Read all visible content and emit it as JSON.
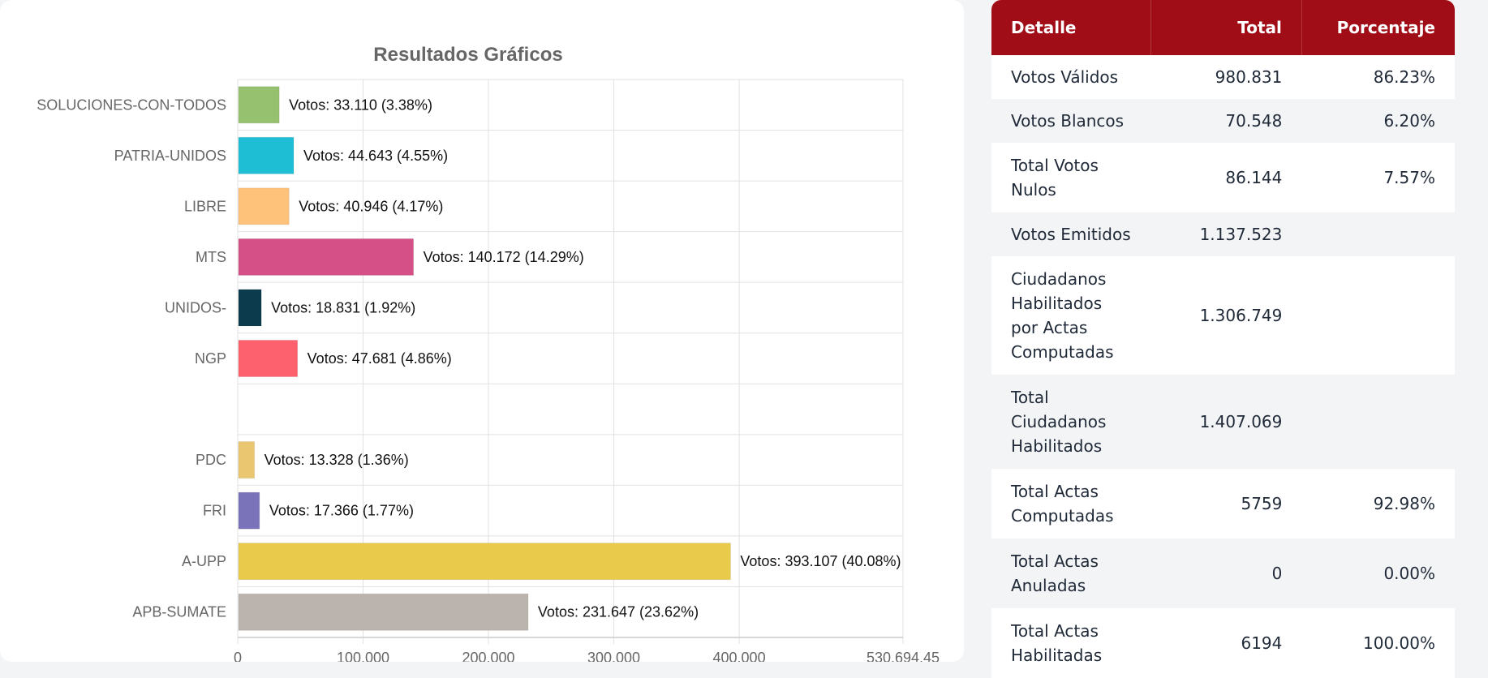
{
  "chart_data": {
    "type": "bar",
    "orientation": "horizontal",
    "title": "Resultados Gráficos",
    "categories": [
      "SOLUCIONES-CON-TODOS",
      "PATRIA-UNIDOS",
      "LIBRE",
      "MTS",
      "UNIDOS-",
      "NGP",
      "",
      "PDC",
      "FRI",
      "A-UPP",
      "APB-SUMATE"
    ],
    "values": [
      33110,
      44643,
      40946,
      140172,
      18831,
      47681,
      null,
      13328,
      17366,
      393107,
      231647
    ],
    "data_labels": [
      "Votos: 33.110 (3.38%)",
      "Votos: 44.643 (4.55%)",
      "Votos: 40.946 (4.17%)",
      "Votos: 140.172 (14.29%)",
      "Votos: 18.831 (1.92%)",
      "Votos: 47.681 (4.86%)",
      "",
      "Votos: 13.328 (1.36%)",
      "Votos: 17.366 (1.77%)",
      "Votos: 393.107 (40.08%)",
      "Votos: 231.647 (23.62%)"
    ],
    "colors": [
      "#96c16f",
      "#1ebfd4",
      "#fec27a",
      "#d55087",
      "#0b3b4d",
      "#fd616e",
      "#ffffff",
      "#e9c66f",
      "#7b73b9",
      "#eaca4a",
      "#bbb3ae"
    ],
    "xlim": [
      0,
      530694.45
    ],
    "x_ticks": [
      0,
      100000,
      200000,
      300000,
      400000,
      530694.45
    ],
    "x_tick_labels": [
      "0",
      "100.000",
      "200.000",
      "300.000",
      "400.000",
      "530.694,45"
    ],
    "grid": true,
    "xlabel": "",
    "ylabel": ""
  },
  "table": {
    "headers": [
      "Detalle",
      "Total",
      "Porcentaje"
    ],
    "rows": [
      {
        "detalle": "Votos Válidos",
        "total": "980.831",
        "porcentaje": "86.23%"
      },
      {
        "detalle": "Votos Blancos",
        "total": "70.548",
        "porcentaje": "6.20%"
      },
      {
        "detalle": "Total Votos Nulos",
        "total": "86.144",
        "porcentaje": "7.57%"
      },
      {
        "detalle": "Votos Emitidos",
        "total": "1.137.523",
        "porcentaje": ""
      },
      {
        "detalle": "Ciudadanos Habilitados por Actas Computadas",
        "total": "1.306.749",
        "porcentaje": ""
      },
      {
        "detalle": "Total Ciudadanos Habilitados",
        "total": "1.407.069",
        "porcentaje": ""
      },
      {
        "detalle": "Total Actas Computadas",
        "total": "5759",
        "porcentaje": "92.98%"
      },
      {
        "detalle": "Total Actas Anuladas",
        "total": "0",
        "porcentaje": "0.00%"
      },
      {
        "detalle": "Total Actas Habilitadas",
        "total": "6194",
        "porcentaje": "100.00%"
      }
    ]
  }
}
